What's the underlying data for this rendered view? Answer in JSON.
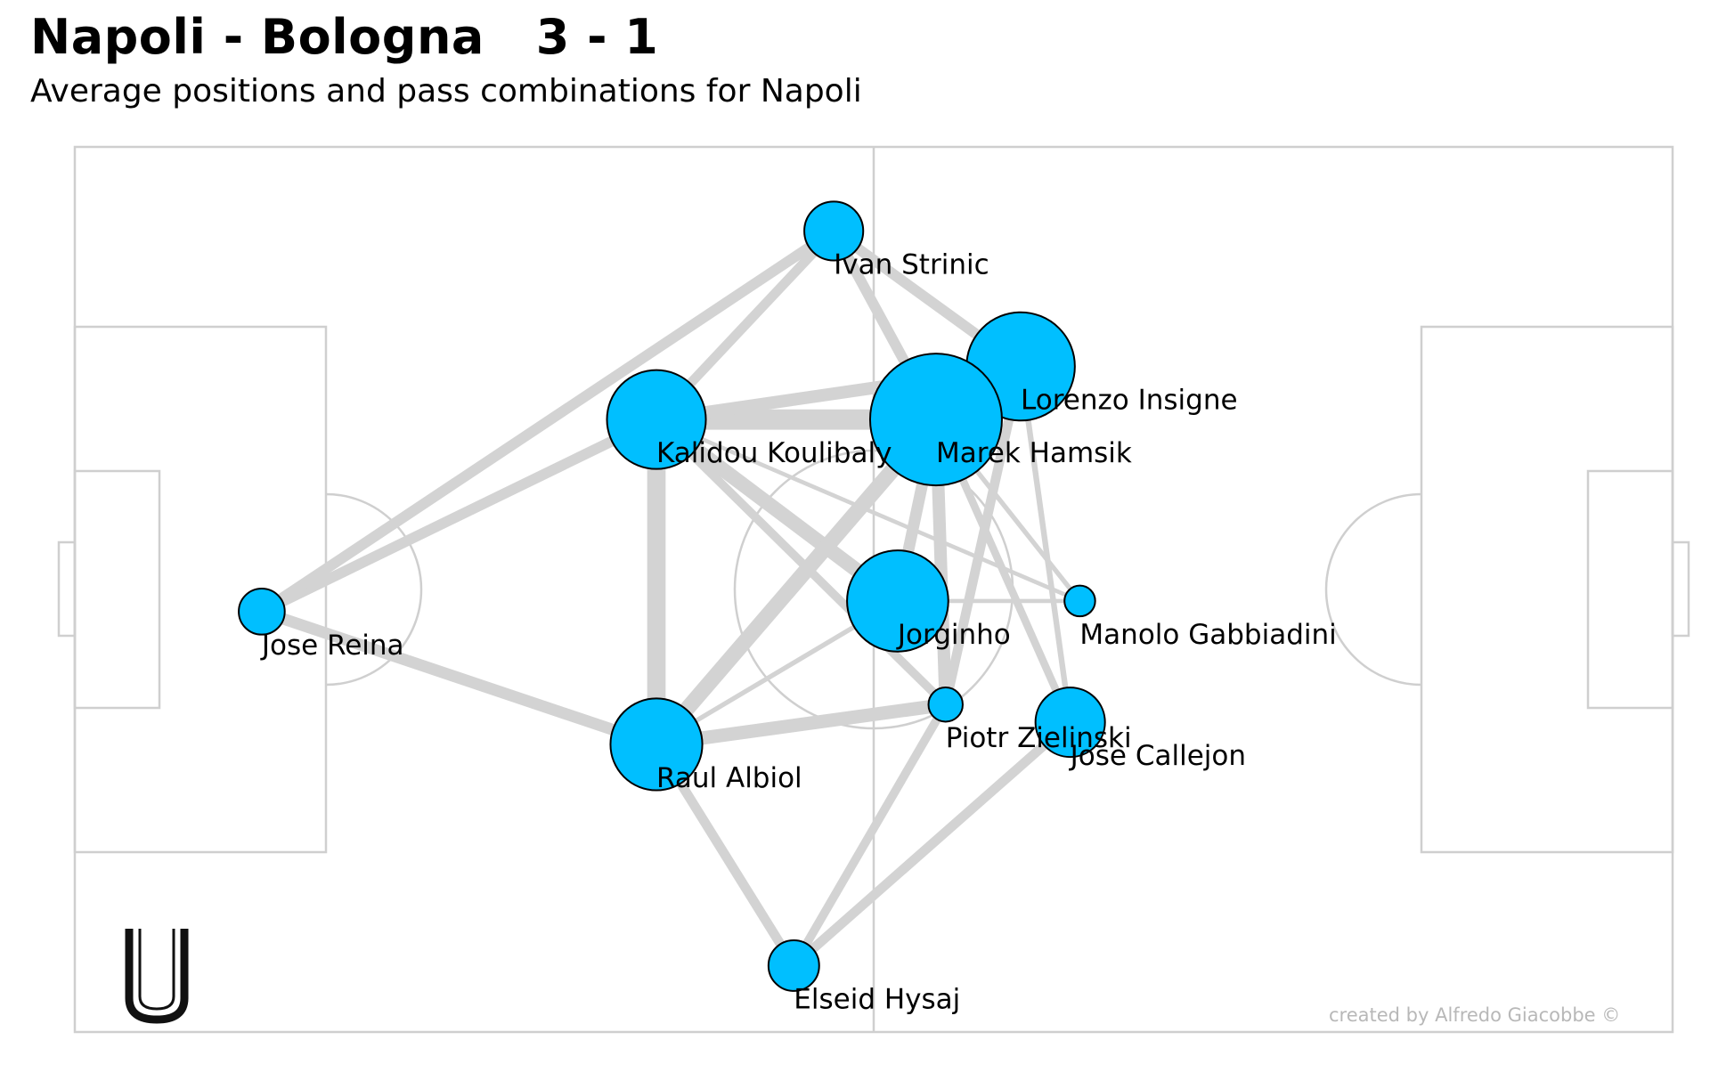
{
  "header": {
    "title": "Napoli - Bologna   3 - 1",
    "subtitle": "Average positions and pass combinations for Napoli"
  },
  "footer": {
    "credit": "created by Alfredo Giacobbe ©"
  },
  "logo": {
    "glyph": "U",
    "icon": "u-logo-icon"
  },
  "colors": {
    "node": "#00BFFF",
    "edge": "#d3d3d3",
    "pitch_lines": "#cfcfcf",
    "node_stroke": "#000000"
  },
  "chart_data": {
    "type": "scatter",
    "description_units": "pitch coordinates 0-100 (x: own goal to opponent goal, y: top to bottom)",
    "xlim": [
      0,
      100
    ],
    "ylim": [
      0,
      100
    ],
    "grid": false,
    "players": [
      {
        "name": "Ivan Strinic",
        "x": 47.5,
        "y": 9.5,
        "size": 0.38
      },
      {
        "name": "Lorenzo Insigne",
        "x": 59.2,
        "y": 24.8,
        "size": 0.8
      },
      {
        "name": "Kalidou Koulibaly",
        "x": 36.4,
        "y": 30.8,
        "size": 0.72
      },
      {
        "name": "Marek Hamsik",
        "x": 53.9,
        "y": 30.8,
        "size": 1.0
      },
      {
        "name": "Jose Reina",
        "x": 11.7,
        "y": 52.5,
        "size": 0.27
      },
      {
        "name": "Jorginho",
        "x": 51.5,
        "y": 51.3,
        "size": 0.74
      },
      {
        "name": "Manolo Gabbiadini",
        "x": 62.9,
        "y": 51.3,
        "size": 0.14
      },
      {
        "name": "Piotr Zielinski",
        "x": 54.5,
        "y": 63.0,
        "size": 0.17
      },
      {
        "name": "Jose Callejon",
        "x": 62.3,
        "y": 65.0,
        "size": 0.47
      },
      {
        "name": "Raul Albiol",
        "x": 36.4,
        "y": 67.5,
        "size": 0.66
      },
      {
        "name": "Elseid Hysaj",
        "x": 45.0,
        "y": 92.5,
        "size": 0.31
      }
    ],
    "pass_links": [
      {
        "from": "Kalidou Koulibaly",
        "to": "Marek Hamsik",
        "weight": 0.95
      },
      {
        "from": "Kalidou Koulibaly",
        "to": "Raul Albiol",
        "weight": 0.85
      },
      {
        "from": "Kalidou Koulibaly",
        "to": "Jorginho",
        "weight": 0.65
      },
      {
        "from": "Kalidou Koulibaly",
        "to": "Lorenzo Insigne",
        "weight": 0.55
      },
      {
        "from": "Kalidou Koulibaly",
        "to": "Jose Reina",
        "weight": 0.45
      },
      {
        "from": "Kalidou Koulibaly",
        "to": "Ivan Strinic",
        "weight": 0.4
      },
      {
        "from": "Kalidou Koulibaly",
        "to": "Piotr Zielinski",
        "weight": 0.35
      },
      {
        "from": "Kalidou Koulibaly",
        "to": "Manolo Gabbiadini",
        "weight": 0.12
      },
      {
        "from": "Raul Albiol",
        "to": "Marek Hamsik",
        "weight": 0.7
      },
      {
        "from": "Raul Albiol",
        "to": "Piotr Zielinski",
        "weight": 0.6
      },
      {
        "from": "Raul Albiol",
        "to": "Jose Reina",
        "weight": 0.5
      },
      {
        "from": "Raul Albiol",
        "to": "Elseid Hysaj",
        "weight": 0.4
      },
      {
        "from": "Raul Albiol",
        "to": "Jorginho",
        "weight": 0.15
      },
      {
        "from": "Jose Reina",
        "to": "Ivan Strinic",
        "weight": 0.45
      },
      {
        "from": "Marek Hamsik",
        "to": "Jorginho",
        "weight": 0.5
      },
      {
        "from": "Marek Hamsik",
        "to": "Piotr Zielinski",
        "weight": 0.55
      },
      {
        "from": "Marek Hamsik",
        "to": "Ivan Strinic",
        "weight": 0.45
      },
      {
        "from": "Marek Hamsik",
        "to": "Jose Callejon",
        "weight": 0.3
      },
      {
        "from": "Marek Hamsik",
        "to": "Manolo Gabbiadini",
        "weight": 0.15
      },
      {
        "from": "Lorenzo Insigne",
        "to": "Ivan Strinic",
        "weight": 0.45
      },
      {
        "from": "Lorenzo Insigne",
        "to": "Piotr Zielinski",
        "weight": 0.4
      },
      {
        "from": "Lorenzo Insigne",
        "to": "Jose Callejon",
        "weight": 0.2
      },
      {
        "from": "Jorginho",
        "to": "Manolo Gabbiadini",
        "weight": 0.12
      },
      {
        "from": "Jose Callejon",
        "to": "Elseid Hysaj",
        "weight": 0.4
      },
      {
        "from": "Piotr Zielinski",
        "to": "Elseid Hysaj",
        "weight": 0.35
      }
    ]
  }
}
